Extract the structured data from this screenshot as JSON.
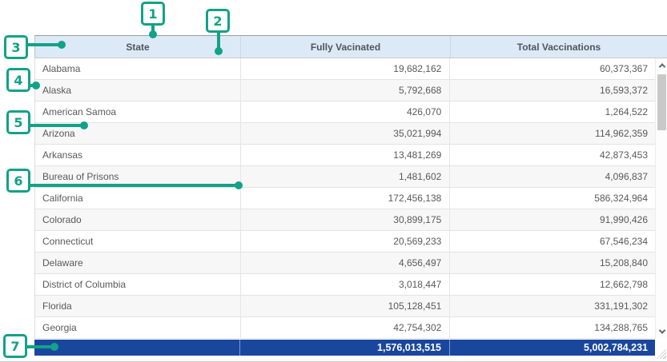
{
  "table": {
    "headers": {
      "state": "State",
      "fully": "Fully Vacinated",
      "total": "Total Vaccinations"
    },
    "rows": [
      {
        "state": "Alabama",
        "fully": "19,682,162",
        "total": "60,373,367"
      },
      {
        "state": "Alaska",
        "fully": "5,792,668",
        "total": "16,593,372"
      },
      {
        "state": "American Samoa",
        "fully": "426,070",
        "total": "1,264,522"
      },
      {
        "state": "Arizona",
        "fully": "35,021,994",
        "total": "114,962,359"
      },
      {
        "state": "Arkansas",
        "fully": "13,481,269",
        "total": "42,873,453"
      },
      {
        "state": "Bureau of Prisons",
        "fully": "1,481,602",
        "total": "4,096,837"
      },
      {
        "state": "California",
        "fully": "172,456,138",
        "total": "586,324,964"
      },
      {
        "state": "Colorado",
        "fully": "30,899,175",
        "total": "91,990,426"
      },
      {
        "state": "Connecticut",
        "fully": "20,569,233",
        "total": "67,546,234"
      },
      {
        "state": "Delaware",
        "fully": "4,656,497",
        "total": "15,208,840"
      },
      {
        "state": "District of Columbia",
        "fully": "3,018,447",
        "total": "12,662,798"
      },
      {
        "state": "Florida",
        "fully": "105,128,451",
        "total": "331,191,302"
      },
      {
        "state": "Georgia",
        "fully": "42,754,302",
        "total": "134,288,765"
      }
    ],
    "summary": {
      "fully": "1,576,013,515",
      "total": "5,002,784,231"
    }
  },
  "callouts": [
    {
      "label": "1"
    },
    {
      "label": "2"
    },
    {
      "label": "3"
    },
    {
      "label": "4"
    },
    {
      "label": "5"
    },
    {
      "label": "6"
    },
    {
      "label": "7"
    }
  ],
  "icons": {
    "scroll_up": "chevron-up",
    "scroll_down": "chevron-down",
    "resize_grip": "diagonal-resize-grip"
  },
  "colors": {
    "accent_green": "#12a287",
    "header_bg": "#dce9f7",
    "summary_bg": "#1a479e"
  }
}
